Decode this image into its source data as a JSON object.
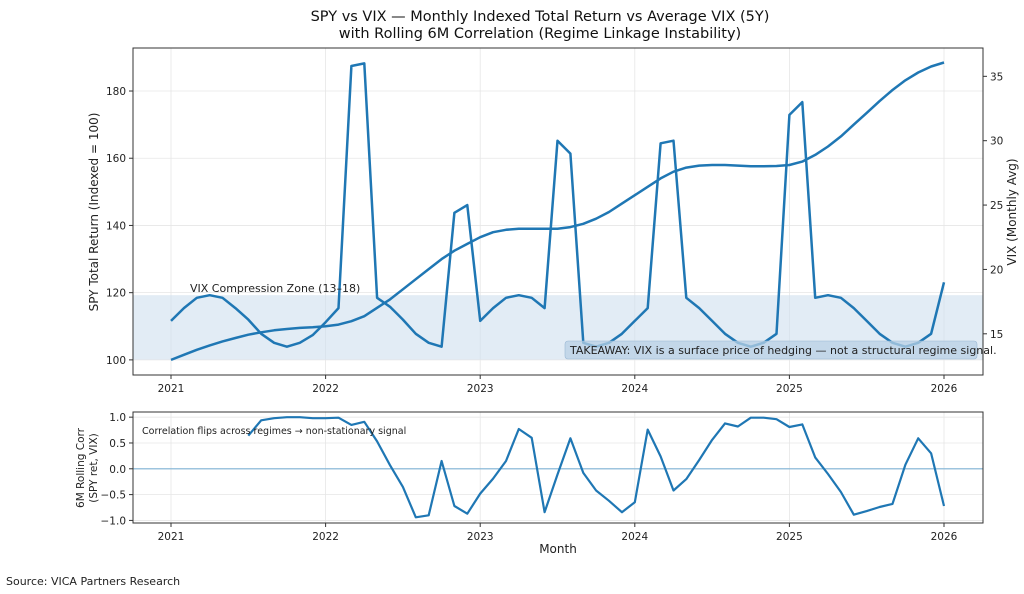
{
  "chart_data": [
    {
      "type": "line",
      "title": "SPY vs VIX — Monthly Indexed Total Return vs Average VIX (5Y)",
      "subtitle": "with Rolling 6M Correlation (Regime Linkage Instability)",
      "x_start": "2021-01",
      "x_frequency": "monthly",
      "x_ticks": [
        "2021",
        "2022",
        "2023",
        "2024",
        "2025",
        "2026"
      ],
      "ylabel_left": "SPY Total Return (Indexed = 100)",
      "ylabel_right": "VIX (Monthly Avg)",
      "ylim_left": [
        95.5,
        192.8
      ],
      "ylim_right": [
        11.8,
        37.2
      ],
      "yticks_left": [
        100,
        120,
        140,
        160,
        180
      ],
      "yticks_right": [
        15,
        20,
        25,
        30,
        35
      ],
      "grid": true,
      "series": [
        {
          "axis": "left",
          "color": "#1f77b4",
          "values": [
            100,
            101.5,
            103,
            104.3,
            105.5,
            106.5,
            107.5,
            108.2,
            108.8,
            109.2,
            109.5,
            109.7,
            110,
            110.5,
            111.5,
            113,
            115.5,
            118,
            121,
            124,
            127,
            130,
            132.5,
            134.5,
            136.5,
            138,
            138.7,
            139,
            139,
            139,
            139,
            139.5,
            140.5,
            142,
            144,
            146.5,
            149,
            151.5,
            154,
            156,
            157.2,
            157.8,
            158,
            158,
            157.8,
            157.6,
            157.6,
            157.7,
            158,
            159,
            161,
            163.5,
            166.5,
            170,
            173.5,
            177,
            180.3,
            183.2,
            185.5,
            187.3,
            188.5
          ]
        },
        {
          "axis": "right",
          "color": "#1f77b4",
          "values": [
            16,
            17,
            17.8,
            18,
            17.8,
            17,
            16.1,
            15,
            14.3,
            14,
            14.3,
            14.9,
            15.9,
            17,
            35.8,
            36,
            17.8,
            17.1,
            16.1,
            15,
            14.3,
            14,
            24.4,
            25,
            16,
            17,
            17.8,
            18,
            17.8,
            17,
            30,
            29,
            14.3,
            14,
            14.3,
            15,
            16,
            17,
            29.8,
            30,
            17.8,
            17,
            16,
            15,
            14.3,
            14,
            14.3,
            15,
            32,
            33,
            17.8,
            18,
            17.8,
            17,
            16,
            15,
            14.3,
            14,
            14.3,
            15,
            19
          ]
        }
      ],
      "band": {
        "range": [
          13,
          18
        ],
        "label": "VIX Compression Zone (13–18)",
        "color": "#cfe0ef"
      },
      "annotation": "TAKEAWAY: VIX is a surface price of hedging — not a structural regime signal."
    },
    {
      "type": "line",
      "xlabel": "Month",
      "ylabel": "6M Rolling Corr\n(SPY ret, VIX)",
      "ylabel_lines": [
        "6M Rolling Corr",
        "(SPY ret, VIX)"
      ],
      "ylim": [
        -1.05,
        1.1
      ],
      "yticks": [
        "1.0",
        "0.5",
        "0.0",
        "−0.5",
        "−1.0"
      ],
      "ytick_values": [
        1,
        0.5,
        0,
        -0.5,
        -1
      ],
      "x_ticks": [
        "2021",
        "2022",
        "2023",
        "2024",
        "2025",
        "2026"
      ],
      "reference_line": 0,
      "grid": true,
      "series": [
        {
          "color": "#1f77b4",
          "values": [
            null,
            null,
            null,
            null,
            null,
            null,
            0.64,
            0.94,
            0.98,
            1.0,
            1.0,
            0.98,
            0.98,
            0.99,
            0.85,
            0.91,
            0.53,
            0.07,
            -0.35,
            -0.94,
            -0.9,
            0.15,
            -0.72,
            -0.87,
            -0.48,
            -0.19,
            0.15,
            0.77,
            0.6,
            -0.84,
            -0.11,
            0.59,
            -0.08,
            -0.42,
            -0.62,
            -0.84,
            -0.65,
            0.76,
            0.24,
            -0.42,
            -0.2,
            0.17,
            0.56,
            0.88,
            0.82,
            0.99,
            0.99,
            0.96,
            0.81,
            0.86,
            0.22,
            -0.1,
            -0.45,
            -0.89,
            -0.82,
            -0.74,
            -0.68,
            0.08,
            0.59,
            0.3,
            -0.72
          ]
        }
      ],
      "annotation": "Correlation flips across regimes → non-stationary signal"
    }
  ],
  "source": "Source: VICA Partners Research"
}
